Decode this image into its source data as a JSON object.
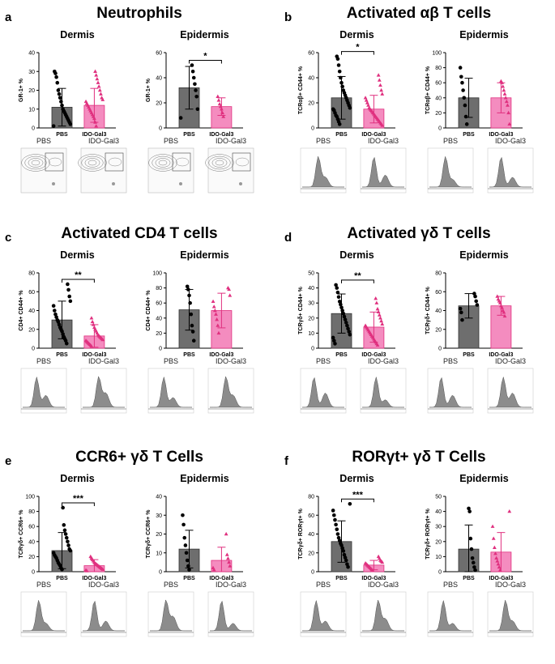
{
  "colors": {
    "pbs": "#6e6e6e",
    "ido": "#f48cbf",
    "ido_marker": "#e0307f"
  },
  "flow_labels": {
    "left": "PBS",
    "right": "IDO-Gal3"
  },
  "panels": [
    {
      "letter": "a",
      "title": "Neutrophils",
      "flow_style": "contour",
      "charts": [
        {
          "subtitle": "Dermis",
          "ylabel": "GR-1+ %",
          "ymax": 40,
          "ticks": [
            0,
            10,
            20,
            30,
            40
          ],
          "sig": "",
          "categories": [
            "PBS",
            "IDO-Gal3"
          ],
          "series": [
            {
              "mean": 11,
              "sd": 10,
              "points": [
                1,
                2,
                3,
                4,
                5,
                6,
                7,
                8,
                9,
                10,
                12,
                14,
                16,
                18,
                20,
                24,
                27,
                29,
                30
              ]
            },
            {
              "mean": 12,
              "sd": 9,
              "points": [
                1,
                3,
                5,
                6,
                7,
                8,
                9,
                10,
                11,
                12,
                13,
                14,
                15,
                16,
                18,
                20,
                22,
                24,
                26,
                28,
                30
              ]
            }
          ]
        },
        {
          "subtitle": "Epidermis",
          "ylabel": "GR-1+ %",
          "ymax": 60,
          "ticks": [
            0,
            20,
            40,
            60
          ],
          "sig": "*",
          "categories": [
            "PBS",
            "IDO-Gal3"
          ],
          "series": [
            {
              "mean": 32,
              "sd": 17,
              "points": [
                8,
                15,
                25,
                30,
                35,
                40,
                45,
                50
              ]
            },
            {
              "mean": 17,
              "sd": 7,
              "points": [
                9,
                12,
                15,
                17,
                19,
                22,
                25
              ]
            }
          ]
        }
      ]
    },
    {
      "letter": "b",
      "title": "Activated αβ T cells",
      "flow_style": "histogram",
      "charts": [
        {
          "subtitle": "Dermis",
          "ylabel": "TCRαβ+ CD44+ %",
          "ymax": 60,
          "ticks": [
            0,
            20,
            40,
            60
          ],
          "sig": "*",
          "categories": [
            "PBS",
            "IDO-Gal3"
          ],
          "series": [
            {
              "mean": 24,
              "sd": 17,
              "points": [
                3,
                5,
                7,
                9,
                10,
                12,
                14,
                15,
                16,
                18,
                20,
                22,
                24,
                26,
                28,
                30,
                33,
                36,
                40,
                45,
                50,
                55,
                57
              ]
            },
            {
              "mean": 15,
              "sd": 11,
              "points": [
                2,
                3,
                4,
                5,
                6,
                7,
                8,
                9,
                10,
                11,
                12,
                13,
                14,
                15,
                16,
                18,
                20,
                22,
                24,
                27,
                30,
                34,
                38,
                42
              ]
            }
          ]
        },
        {
          "subtitle": "Epidermis",
          "ylabel": "TCRαβ+ CD44+ %",
          "ymax": 100,
          "ticks": [
            0,
            20,
            40,
            60,
            80,
            100
          ],
          "sig": "",
          "categories": [
            "PBS",
            "IDO-Gal3"
          ],
          "series": [
            {
              "mean": 40,
              "sd": 26,
              "points": [
                5,
                15,
                30,
                40,
                50,
                60,
                68,
                80
              ]
            },
            {
              "mean": 40,
              "sd": 20,
              "points": [
                5,
                20,
                30,
                35,
                40,
                45,
                50,
                55,
                60,
                62
              ]
            }
          ]
        }
      ]
    },
    {
      "letter": "c",
      "title": "Activated CD4 T cells",
      "flow_style": "histogram",
      "charts": [
        {
          "subtitle": "Dermis",
          "ylabel": "CD4+ CD44+ %",
          "ymax": 80,
          "ticks": [
            0,
            20,
            40,
            60,
            80
          ],
          "sig": "**",
          "categories": [
            "PBS",
            "IDO-Gal3"
          ],
          "series": [
            {
              "mean": 30,
              "sd": 20,
              "points": [
                5,
                8,
                10,
                12,
                15,
                18,
                20,
                22,
                25,
                28,
                30,
                33,
                36,
                40,
                45,
                50,
                55,
                62,
                68
              ]
            },
            {
              "mean": 13,
              "sd": 12,
              "points": [
                2,
                3,
                4,
                5,
                6,
                7,
                8,
                9,
                10,
                11,
                12,
                13,
                14,
                16,
                18,
                20,
                22,
                25,
                28,
                32
              ]
            }
          ]
        },
        {
          "subtitle": "Epidermis",
          "ylabel": "CD4+ CD44+ %",
          "ymax": 100,
          "ticks": [
            0,
            20,
            40,
            60,
            80,
            100
          ],
          "sig": "",
          "categories": [
            "PBS",
            "IDO-Gal3"
          ],
          "series": [
            {
              "mean": 51,
              "sd": 27,
              "points": [
                10,
                22,
                30,
                45,
                60,
                70,
                78,
                82
              ]
            },
            {
              "mean": 50,
              "sd": 23,
              "points": [
                20,
                30,
                38,
                45,
                50,
                55,
                62,
                70,
                78,
                80
              ]
            }
          ]
        }
      ]
    },
    {
      "letter": "d",
      "title": "Activated γδ T cells",
      "flow_style": "histogram",
      "charts": [
        {
          "subtitle": "Dermis",
          "ylabel": "TCRγδ+ CD44+ %",
          "ymax": 50,
          "ticks": [
            0,
            10,
            20,
            30,
            40,
            50
          ],
          "sig": "**",
          "categories": [
            "PBS",
            "IDO-Gal3"
          ],
          "series": [
            {
              "mean": 23,
              "sd": 13,
              "points": [
                3,
                5,
                7,
                9,
                11,
                13,
                15,
                17,
                19,
                21,
                23,
                25,
                27,
                29,
                31,
                34,
                37,
                40,
                42
              ]
            },
            {
              "mean": 14,
              "sd": 10,
              "points": [
                2,
                3,
                4,
                5,
                6,
                7,
                8,
                9,
                10,
                11,
                12,
                13,
                14,
                15,
                16,
                18,
                20,
                22,
                24,
                26,
                30,
                33
              ]
            }
          ]
        },
        {
          "subtitle": "Epidermis",
          "ylabel": "TCRγδ+ CD44+ %",
          "ymax": 80,
          "ticks": [
            0,
            20,
            40,
            60,
            80
          ],
          "sig": "",
          "categories": [
            "PBS",
            "IDO-Gal3"
          ],
          "series": [
            {
              "mean": 45,
              "sd": 13,
              "points": [
                30,
                38,
                42,
                46,
                50,
                55,
                58
              ]
            },
            {
              "mean": 45,
              "sd": 10,
              "points": [
                34,
                38,
                40,
                43,
                45,
                48,
                50,
                52,
                55
              ]
            }
          ]
        }
      ]
    },
    {
      "letter": "e",
      "title": "CCR6+ γδ T Cells",
      "flow_style": "histogram",
      "charts": [
        {
          "subtitle": "Dermis",
          "ylabel": "TCRγδ+ CCR6+ %",
          "ymax": 100,
          "ticks": [
            0,
            20,
            40,
            60,
            80,
            100
          ],
          "sig": "***",
          "categories": [
            "PBS",
            "IDO-Gal3"
          ],
          "series": [
            {
              "mean": 28,
              "sd": 24,
              "points": [
                3,
                5,
                8,
                10,
                12,
                15,
                18,
                20,
                22,
                25,
                28,
                30,
                35,
                40,
                45,
                50,
                55,
                62,
                85
              ]
            },
            {
              "mean": 8,
              "sd": 8,
              "points": [
                1,
                2,
                3,
                4,
                5,
                6,
                7,
                8,
                9,
                10,
                11,
                12,
                14,
                16,
                18,
                20
              ]
            }
          ]
        },
        {
          "subtitle": "Epidermis",
          "ylabel": "TCRγδ+ CCR6+ %",
          "ymax": 40,
          "ticks": [
            0,
            10,
            20,
            30,
            40
          ],
          "sig": "",
          "categories": [
            "PBS",
            "IDO-Gal3"
          ],
          "series": [
            {
              "mean": 12,
              "sd": 10,
              "points": [
                1,
                3,
                6,
                10,
                14,
                18,
                25,
                30
              ]
            },
            {
              "mean": 6,
              "sd": 7,
              "points": [
                1,
                2,
                3,
                5,
                7,
                9,
                20
              ]
            }
          ]
        }
      ]
    },
    {
      "letter": "f",
      "title": "RORγt+ γδ T Cells",
      "flow_style": "histogram",
      "charts": [
        {
          "subtitle": "Dermis",
          "ylabel": "TCRγδ+ RORγt+ %",
          "ymax": 80,
          "ticks": [
            0,
            20,
            40,
            60,
            80
          ],
          "sig": "***",
          "categories": [
            "PBS",
            "IDO-Gal3"
          ],
          "series": [
            {
              "mean": 32,
              "sd": 22,
              "points": [
                5,
                8,
                12,
                15,
                18,
                22,
                25,
                28,
                30,
                33,
                36,
                40,
                45,
                50,
                55,
                60,
                65,
                72
              ]
            },
            {
              "mean": 7,
              "sd": 5,
              "points": [
                1,
                2,
                3,
                4,
                5,
                6,
                7,
                8,
                9,
                10,
                11,
                12,
                14,
                16
              ]
            }
          ]
        },
        {
          "subtitle": "Epidermis",
          "ylabel": "TCRγδ+ RORγt+ %",
          "ymax": 50,
          "ticks": [
            0,
            10,
            20,
            30,
            40,
            50
          ],
          "sig": "",
          "categories": [
            "PBS",
            "IDO-Gal3"
          ],
          "series": [
            {
              "mean": 15,
              "sd": 16,
              "points": [
                1,
                3,
                6,
                9,
                15,
                22,
                40,
                42
              ]
            },
            {
              "mean": 13,
              "sd": 13,
              "points": [
                1,
                3,
                5,
                7,
                9,
                12,
                16,
                22,
                30,
                40
              ]
            }
          ]
        }
      ]
    }
  ]
}
